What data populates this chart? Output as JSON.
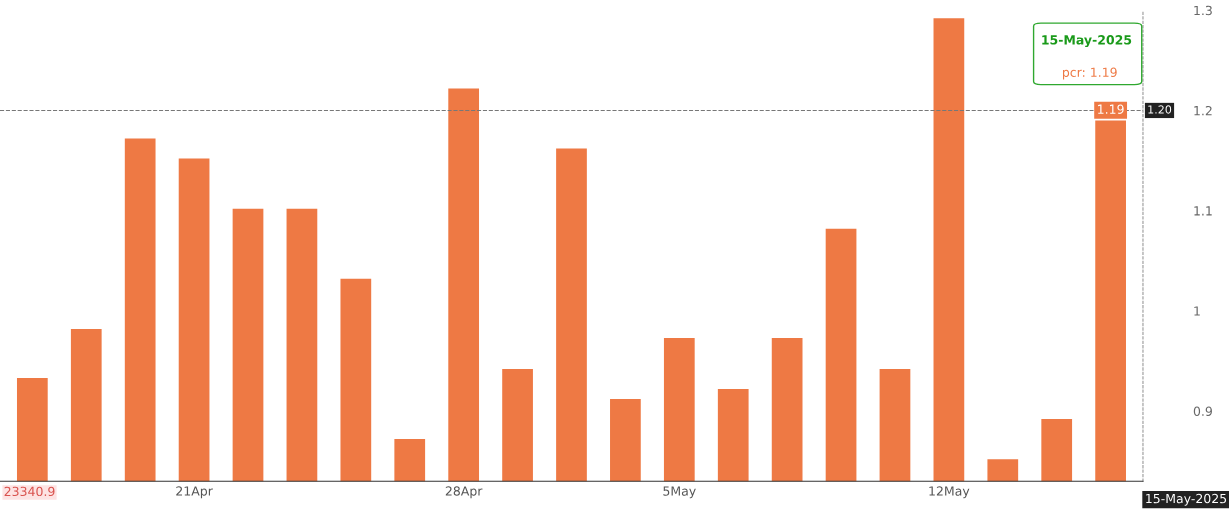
{
  "chart_data": {
    "type": "bar",
    "categories": [
      null,
      null,
      null,
      "21Apr",
      null,
      null,
      null,
      null,
      "28Apr",
      null,
      null,
      null,
      "5May",
      null,
      null,
      null,
      null,
      "12May",
      null,
      null,
      null
    ],
    "values": [
      0.933,
      0.982,
      1.172,
      1.152,
      1.102,
      1.102,
      1.032,
      0.872,
      1.222,
      0.942,
      1.162,
      0.912,
      0.973,
      0.922,
      0.973,
      1.082,
      0.942,
      1.292,
      0.852,
      0.892,
      1.19
    ],
    "value_labels": [
      null,
      null,
      null,
      null,
      null,
      null,
      null,
      null,
      null,
      null,
      null,
      null,
      null,
      null,
      null,
      null,
      null,
      null,
      null,
      null,
      "1.19"
    ],
    "color": "#ee7944",
    "ylim": [
      0.83,
      1.3
    ],
    "yticks": [
      0.9,
      1,
      1.1,
      1.2,
      1.3
    ],
    "grid": false,
    "ref_lines": [
      {
        "axis": "y",
        "value": 1.2,
        "label": "1.20",
        "color": "#777777",
        "line_style": "dashed"
      }
    ],
    "annotations": [
      "15-May-2025",
      "pcr: 1.19",
      "23340.9",
      "15-May-2025"
    ]
  }
}
